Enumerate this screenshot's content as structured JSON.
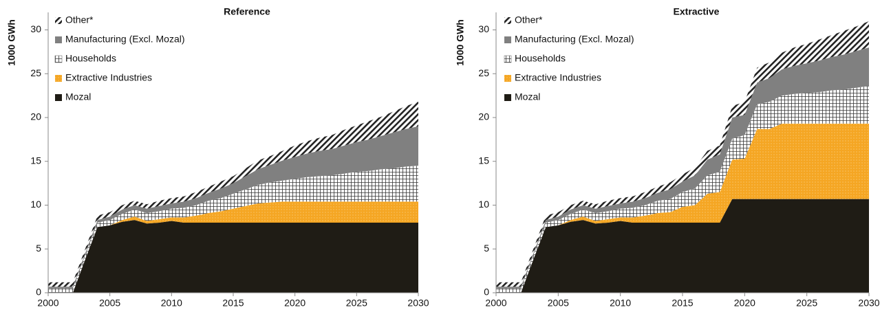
{
  "chart_data": [
    {
      "type": "stacked-area",
      "title": "Reference",
      "y_label": "1000 GWh",
      "x": [
        2000,
        2001,
        2002,
        2003,
        2004,
        2005,
        2006,
        2007,
        2008,
        2009,
        2010,
        2011,
        2012,
        2013,
        2014,
        2015,
        2016,
        2017,
        2018,
        2019,
        2020,
        2021,
        2022,
        2023,
        2024,
        2025,
        2026,
        2027,
        2028,
        2029,
        2030
      ],
      "xlim": [
        2000,
        2030
      ],
      "xticks": [
        2000,
        2005,
        2010,
        2015,
        2020,
        2025,
        2030
      ],
      "ylim": [
        0,
        32
      ],
      "yticks": [
        0,
        5,
        10,
        15,
        20,
        25,
        30
      ],
      "legend": "top-left",
      "series": [
        {
          "name": "Mozal",
          "color": "#1f1c15",
          "pattern": "solid",
          "values": [
            0,
            0,
            0,
            3.8,
            7.5,
            7.7,
            8.1,
            8.3,
            7.9,
            8.0,
            8.2,
            8.0,
            8.0,
            8.0,
            8.0,
            8.0,
            8.0,
            8.0,
            8.0,
            8.0,
            8.0,
            8.0,
            8.0,
            8.0,
            8.0,
            8.0,
            8.0,
            8.0,
            8.0,
            8.0,
            8.0
          ]
        },
        {
          "name": "Extractive Industries",
          "color": "#f5a623",
          "pattern": "dots",
          "values": [
            0,
            0,
            0,
            0,
            0,
            0,
            0.2,
            0.4,
            0.3,
            0.4,
            0.4,
            0.6,
            0.8,
            1.1,
            1.3,
            1.6,
            1.9,
            2.2,
            2.3,
            2.4,
            2.4,
            2.4,
            2.4,
            2.4,
            2.4,
            2.4,
            2.4,
            2.4,
            2.4,
            2.4,
            2.4
          ]
        },
        {
          "name": "Households",
          "color": "#333333",
          "pattern": "grid",
          "values": [
            0.5,
            0.5,
            0.5,
            0.5,
            0.5,
            0.6,
            0.7,
            0.8,
            0.9,
            0.9,
            1.0,
            1.1,
            1.2,
            1.4,
            1.5,
            1.7,
            1.9,
            2.1,
            2.3,
            2.4,
            2.6,
            2.8,
            2.9,
            3.0,
            3.2,
            3.4,
            3.5,
            3.7,
            3.8,
            4.0,
            4.1
          ]
        },
        {
          "name": "Manufacturing (Excl. Mozal)",
          "color": "#808080",
          "pattern": "solid",
          "values": [
            0.2,
            0.2,
            0.2,
            0.2,
            0.3,
            0.4,
            0.5,
            0.5,
            0.5,
            0.6,
            0.6,
            0.7,
            0.8,
            0.9,
            1.1,
            1.2,
            1.5,
            1.8,
            2.0,
            2.3,
            2.5,
            2.7,
            2.9,
            3.0,
            3.2,
            3.4,
            3.6,
            3.8,
            4.1,
            4.3,
            4.5
          ]
        },
        {
          "name": "Other*",
          "color": "#222222",
          "pattern": "hatch",
          "values": [
            0.5,
            0.5,
            0.5,
            0.5,
            0.5,
            0.5,
            0.5,
            0.5,
            0.5,
            0.6,
            0.6,
            0.6,
            0.7,
            0.7,
            0.8,
            0.8,
            0.9,
            1.0,
            1.0,
            1.1,
            1.3,
            1.4,
            1.5,
            1.6,
            1.8,
            1.9,
            2.1,
            2.2,
            2.4,
            2.6,
            2.8
          ]
        }
      ]
    },
    {
      "type": "stacked-area",
      "title": "Extractive",
      "y_label": "1000 GWh",
      "x": [
        2000,
        2001,
        2002,
        2003,
        2004,
        2005,
        2006,
        2007,
        2008,
        2009,
        2010,
        2011,
        2012,
        2013,
        2014,
        2015,
        2016,
        2017,
        2018,
        2019,
        2020,
        2021,
        2022,
        2023,
        2024,
        2025,
        2026,
        2027,
        2028,
        2029,
        2030
      ],
      "xlim": [
        2000,
        2030
      ],
      "xticks": [
        2000,
        2005,
        2010,
        2015,
        2020,
        2025,
        2030
      ],
      "ylim": [
        0,
        32
      ],
      "yticks": [
        0,
        5,
        10,
        15,
        20,
        25,
        30
      ],
      "legend": "top-left",
      "series": [
        {
          "name": "Mozal",
          "color": "#1f1c15",
          "pattern": "solid",
          "values": [
            0,
            0,
            0,
            3.8,
            7.5,
            7.7,
            8.1,
            8.3,
            7.9,
            8.0,
            8.2,
            8.0,
            8.0,
            8.0,
            8.0,
            8.0,
            8.0,
            8.0,
            8.0,
            10.7,
            10.7,
            10.7,
            10.7,
            10.7,
            10.7,
            10.7,
            10.7,
            10.7,
            10.7,
            10.7,
            10.7
          ]
        },
        {
          "name": "Extractive Industries",
          "color": "#f5a623",
          "pattern": "dots",
          "values": [
            0,
            0,
            0,
            0,
            0,
            0,
            0.2,
            0.4,
            0.3,
            0.4,
            0.4,
            0.6,
            0.8,
            1.1,
            1.2,
            1.8,
            2.0,
            3.3,
            3.5,
            4.5,
            4.6,
            8.0,
            8.0,
            8.6,
            8.6,
            8.6,
            8.6,
            8.6,
            8.6,
            8.6,
            8.6
          ]
        },
        {
          "name": "Households",
          "color": "#333333",
          "pattern": "grid",
          "values": [
            0.5,
            0.5,
            0.5,
            0.5,
            0.5,
            0.6,
            0.7,
            0.8,
            0.9,
            0.9,
            1.0,
            1.1,
            1.2,
            1.4,
            1.5,
            1.7,
            1.9,
            2.1,
            2.3,
            2.4,
            2.7,
            2.8,
            3.1,
            3.2,
            3.4,
            3.5,
            3.6,
            3.8,
            3.9,
            4.1,
            4.3
          ]
        },
        {
          "name": "Manufacturing (Excl. Mozal)",
          "color": "#808080",
          "pattern": "solid",
          "values": [
            0.2,
            0.2,
            0.2,
            0.2,
            0.3,
            0.4,
            0.5,
            0.5,
            0.5,
            0.6,
            0.6,
            0.7,
            0.8,
            0.9,
            1.1,
            1.2,
            1.5,
            1.8,
            2.0,
            2.4,
            2.3,
            2.5,
            2.7,
            3.0,
            3.2,
            3.4,
            3.6,
            3.8,
            4.0,
            4.2,
            4.4
          ]
        },
        {
          "name": "Other*",
          "color": "#222222",
          "pattern": "hatch",
          "values": [
            0.5,
            0.5,
            0.5,
            0.5,
            0.5,
            0.5,
            0.5,
            0.5,
            0.5,
            0.6,
            0.6,
            0.6,
            0.7,
            0.7,
            0.8,
            0.8,
            0.9,
            1.0,
            1.0,
            1.3,
            1.5,
            1.7,
            1.8,
            1.9,
            2.1,
            2.2,
            2.4,
            2.5,
            2.7,
            2.8,
            3.0
          ]
        }
      ]
    }
  ]
}
